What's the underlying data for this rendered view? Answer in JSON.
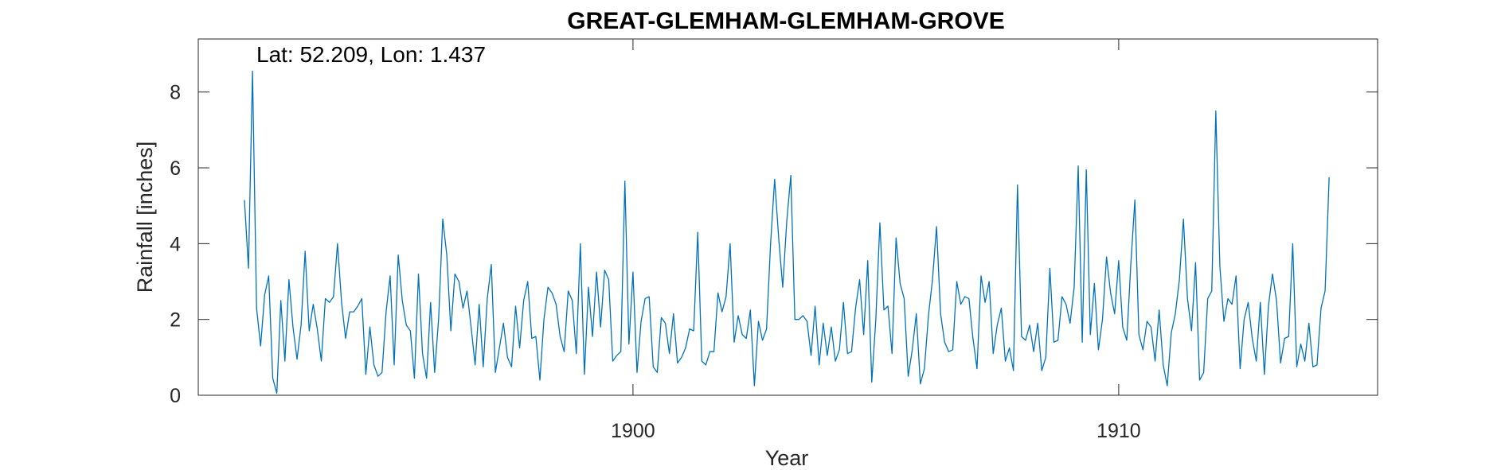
{
  "chart_data": {
    "type": "line",
    "title": "GREAT-GLEMHAM-GLEMHAM-GROVE",
    "annotation": "Lat: 52.209, Lon: 1.437",
    "xlabel": "Year",
    "ylabel": "Rainfall [inches]",
    "xlim": [
      1891.05,
      1915.33
    ],
    "ylim": [
      0,
      9.4
    ],
    "xticks": [
      1900,
      1910
    ],
    "yticks": [
      0,
      2,
      4,
      6,
      8
    ],
    "grid": false,
    "line_color": "#0072BD",
    "series": [
      {
        "x_start": 1892.0,
        "x_step": 0.08333,
        "values": [
          5.15,
          3.35,
          8.55,
          2.3,
          1.3,
          2.65,
          3.15,
          0.45,
          0.05,
          2.5,
          0.9,
          3.05,
          1.8,
          0.95,
          1.85,
          3.8,
          1.7,
          2.4,
          1.75,
          0.9,
          2.55,
          2.45,
          2.6,
          4.0,
          2.45,
          1.5,
          2.2,
          2.2,
          2.35,
          2.55,
          0.55,
          1.8,
          0.8,
          0.5,
          0.6,
          2.2,
          3.15,
          0.8,
          3.7,
          2.5,
          1.85,
          1.7,
          0.45,
          3.2,
          1.1,
          0.45,
          2.45,
          0.6,
          2.05,
          4.65,
          3.7,
          1.7,
          3.2,
          3.0,
          2.3,
          2.75,
          1.8,
          0.8,
          2.4,
          0.75,
          2.55,
          3.45,
          0.6,
          1.25,
          1.9,
          1.0,
          0.75,
          2.35,
          1.25,
          2.5,
          3.0,
          1.5,
          1.55,
          0.4,
          2.0,
          2.85,
          2.7,
          2.4,
          1.55,
          1.15,
          2.75,
          2.5,
          1.1,
          4.0,
          0.55,
          2.85,
          1.55,
          3.25,
          1.8,
          3.3,
          3.05,
          0.9,
          1.05,
          1.15,
          5.65,
          1.35,
          3.25,
          0.6,
          1.95,
          2.55,
          2.6,
          0.75,
          0.6,
          2.05,
          1.9,
          1.1,
          2.15,
          0.85,
          1.0,
          1.25,
          1.75,
          1.7,
          4.3,
          0.9,
          0.8,
          1.15,
          1.15,
          2.7,
          2.2,
          2.6,
          4.0,
          1.4,
          2.1,
          1.6,
          1.5,
          2.25,
          0.25,
          1.95,
          1.45,
          1.75,
          4.0,
          5.7,
          4.15,
          2.85,
          4.6,
          5.8,
          2.0,
          2.0,
          2.1,
          1.95,
          1.05,
          2.35,
          0.8,
          1.9,
          1.05,
          1.8,
          0.9,
          1.2,
          2.45,
          1.1,
          1.15,
          2.3,
          3.05,
          1.6,
          3.55,
          0.35,
          2.0,
          4.55,
          2.25,
          2.35,
          1.1,
          4.15,
          2.95,
          2.55,
          0.5,
          1.2,
          2.15,
          0.3,
          0.7,
          2.1,
          3.05,
          4.45,
          2.15,
          1.4,
          1.15,
          1.2,
          3.0,
          2.4,
          2.6,
          2.55,
          1.5,
          0.7,
          3.15,
          2.45,
          3.0,
          1.1,
          1.85,
          2.3,
          0.9,
          1.25,
          0.65,
          5.55,
          1.55,
          1.45,
          1.85,
          1.15,
          1.9,
          0.65,
          1.0,
          3.35,
          1.4,
          1.45,
          2.6,
          2.4,
          1.9,
          2.85,
          6.05,
          1.4,
          5.95,
          1.6,
          2.95,
          1.2,
          2.0,
          3.65,
          2.7,
          2.15,
          3.55,
          1.8,
          1.45,
          3.45,
          5.15,
          1.6,
          1.2,
          1.95,
          1.8,
          0.9,
          2.25,
          0.8,
          0.25,
          1.65,
          2.15,
          3.05,
          4.65,
          2.55,
          1.7,
          3.5,
          0.4,
          0.6,
          2.55,
          2.75,
          7.5,
          3.4,
          1.95,
          2.55,
          2.4,
          3.15,
          0.7,
          2.0,
          2.45,
          1.5,
          0.9,
          2.45,
          0.55,
          2.35,
          3.2,
          2.5,
          0.85,
          1.5,
          1.55,
          4.0,
          0.75,
          1.35,
          0.9,
          1.9,
          0.75,
          0.8,
          2.3,
          2.75,
          5.75
        ]
      }
    ]
  }
}
